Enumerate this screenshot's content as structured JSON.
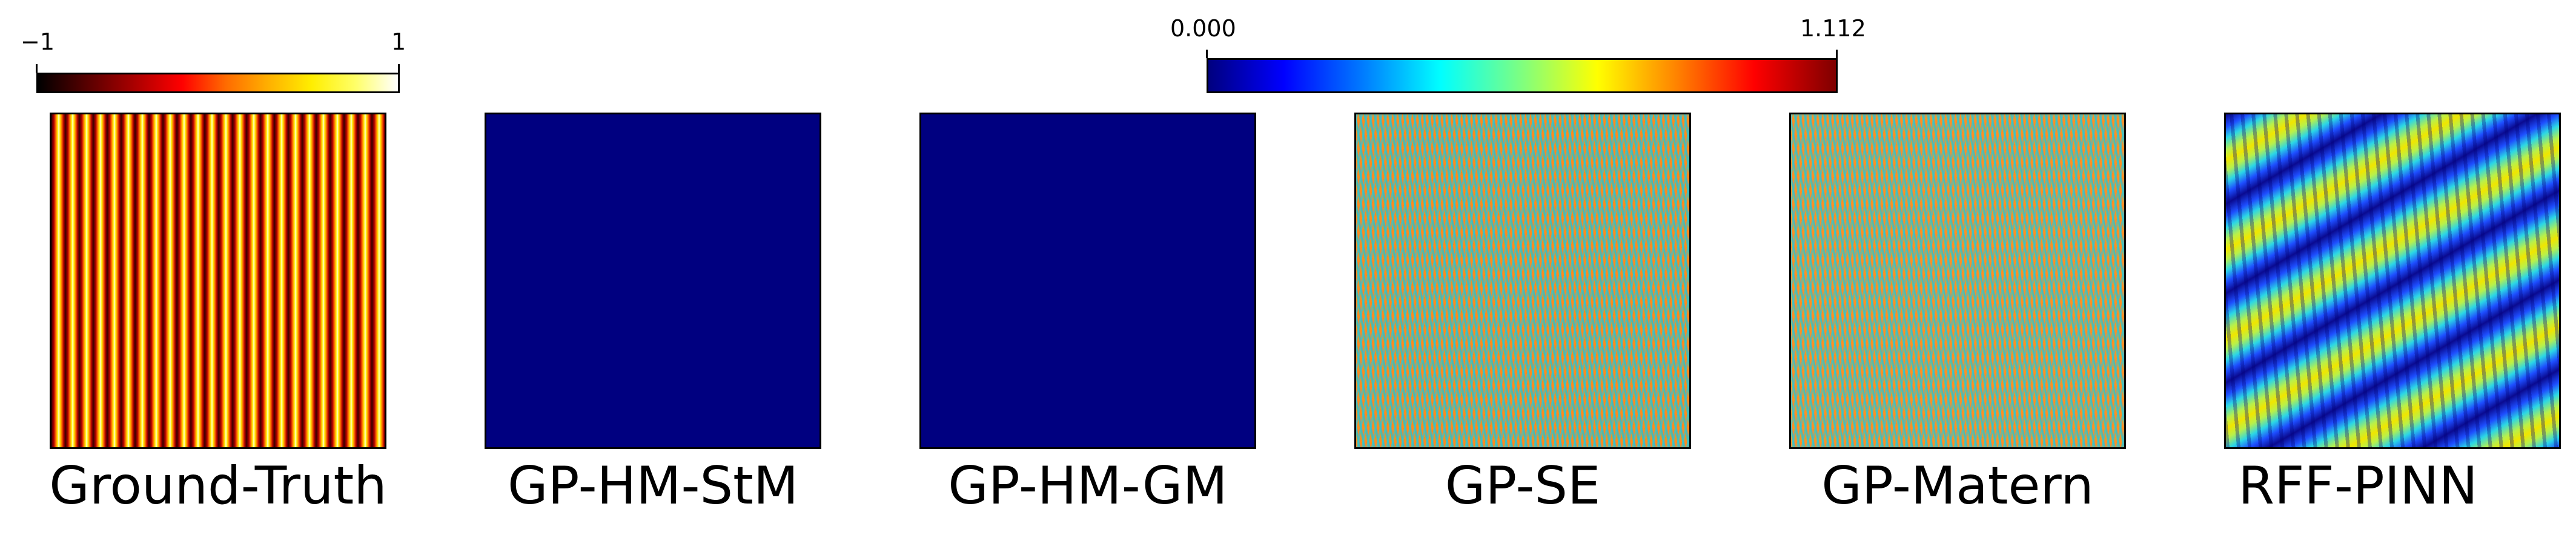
{
  "colorbar_left": {
    "min_label": "−1",
    "max_label": "1",
    "min": -1,
    "max": 1,
    "colormap": "hot"
  },
  "colorbar_right": {
    "min_label": "0.000",
    "max_label": "1.112",
    "min": 0.0,
    "max": 1.112,
    "colormap": "jet"
  },
  "panels": [
    {
      "label": "Ground-Truth"
    },
    {
      "label": "GP-HM-StM"
    },
    {
      "label": "GP-HM-GM"
    },
    {
      "label": "GP-SE"
    },
    {
      "label": "GP-Matern"
    },
    {
      "label": "RFF-PINN"
    }
  ],
  "colors": {
    "uniform_error_fill": "#000080",
    "border": "#000000"
  }
}
